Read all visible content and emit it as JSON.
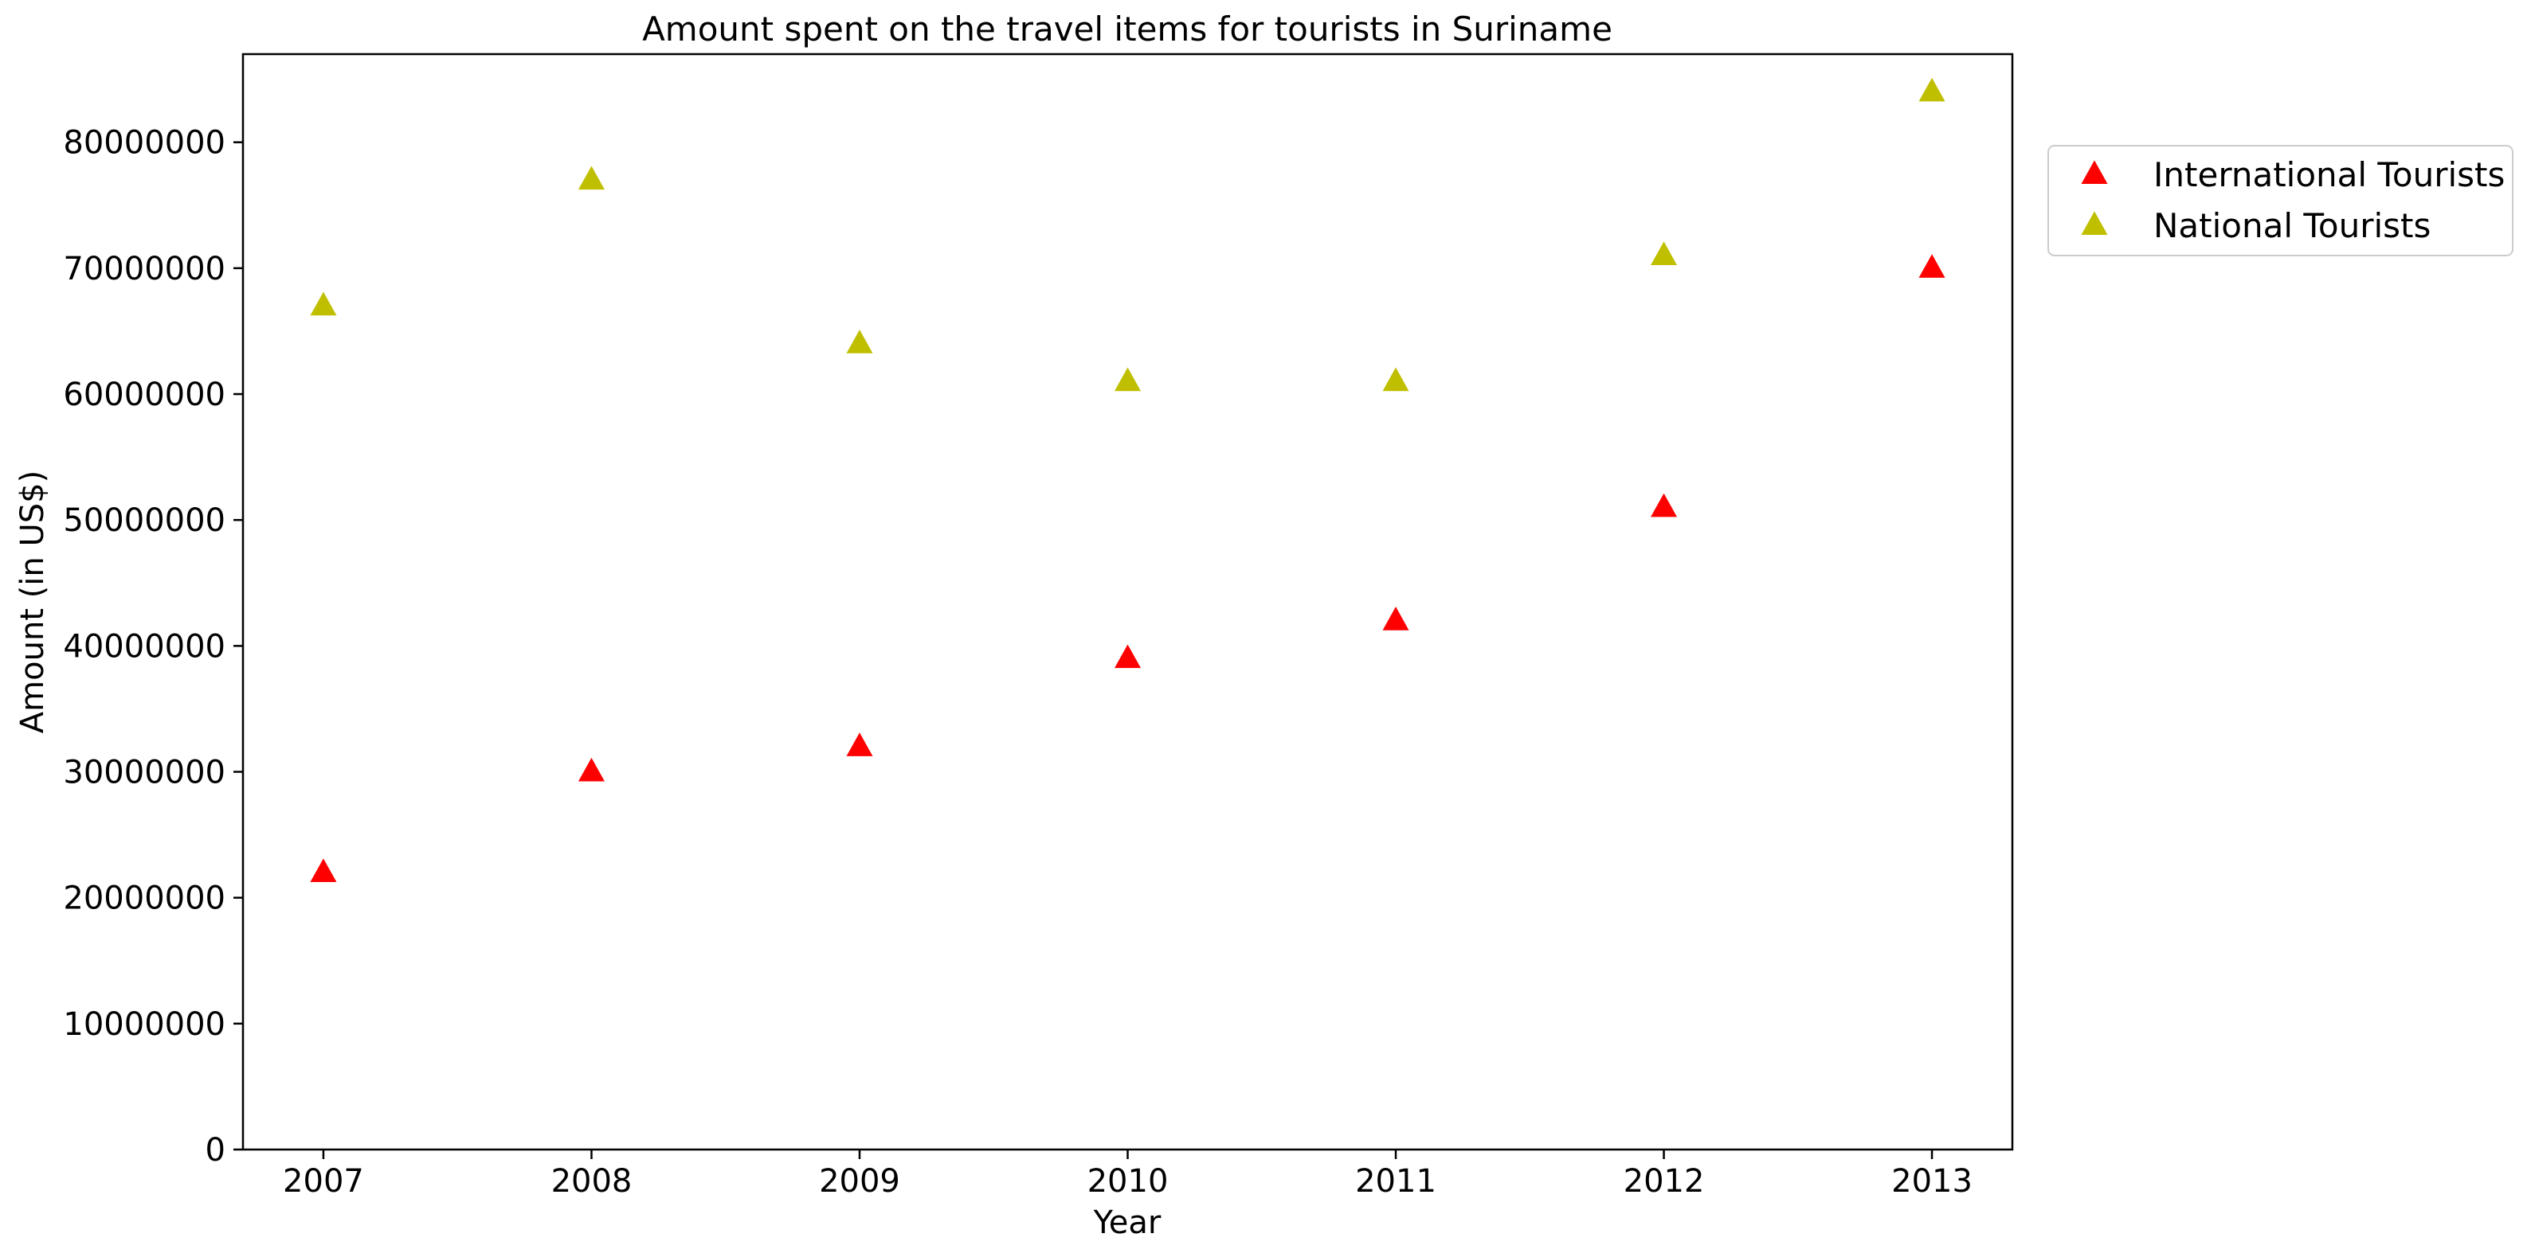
{
  "chart_data": {
    "type": "scatter",
    "title": "Amount spent on the travel items for tourists in Suriname",
    "xlabel": "Year",
    "ylabel": "Amount (in US$)",
    "x": [
      2007,
      2008,
      2009,
      2010,
      2011,
      2012,
      2013
    ],
    "x_tick_labels": [
      "2007",
      "2008",
      "2009",
      "2010",
      "2011",
      "2012",
      "2013"
    ],
    "xlim": [
      2006.7,
      2013.3
    ],
    "ylim": [
      0,
      87000000
    ],
    "y_ticks": [
      0,
      10000000,
      20000000,
      30000000,
      40000000,
      50000000,
      60000000,
      70000000,
      80000000
    ],
    "y_tick_labels": [
      "0",
      "10000000",
      "20000000",
      "30000000",
      "40000000",
      "50000000",
      "60000000",
      "70000000",
      "80000000"
    ],
    "grid": false,
    "legend_position": "outside-top-right",
    "marker": "triangle-up",
    "series": [
      {
        "name": "International Tourists",
        "color": "#ff0000",
        "values": [
          22000000,
          30000000,
          32000000,
          39000000,
          42000000,
          51000000,
          70000000
        ]
      },
      {
        "name": "National Tourists",
        "color": "#bfbf00",
        "values": [
          67000000,
          77000000,
          64000000,
          61000000,
          61000000,
          71000000,
          84000000
        ]
      }
    ]
  }
}
